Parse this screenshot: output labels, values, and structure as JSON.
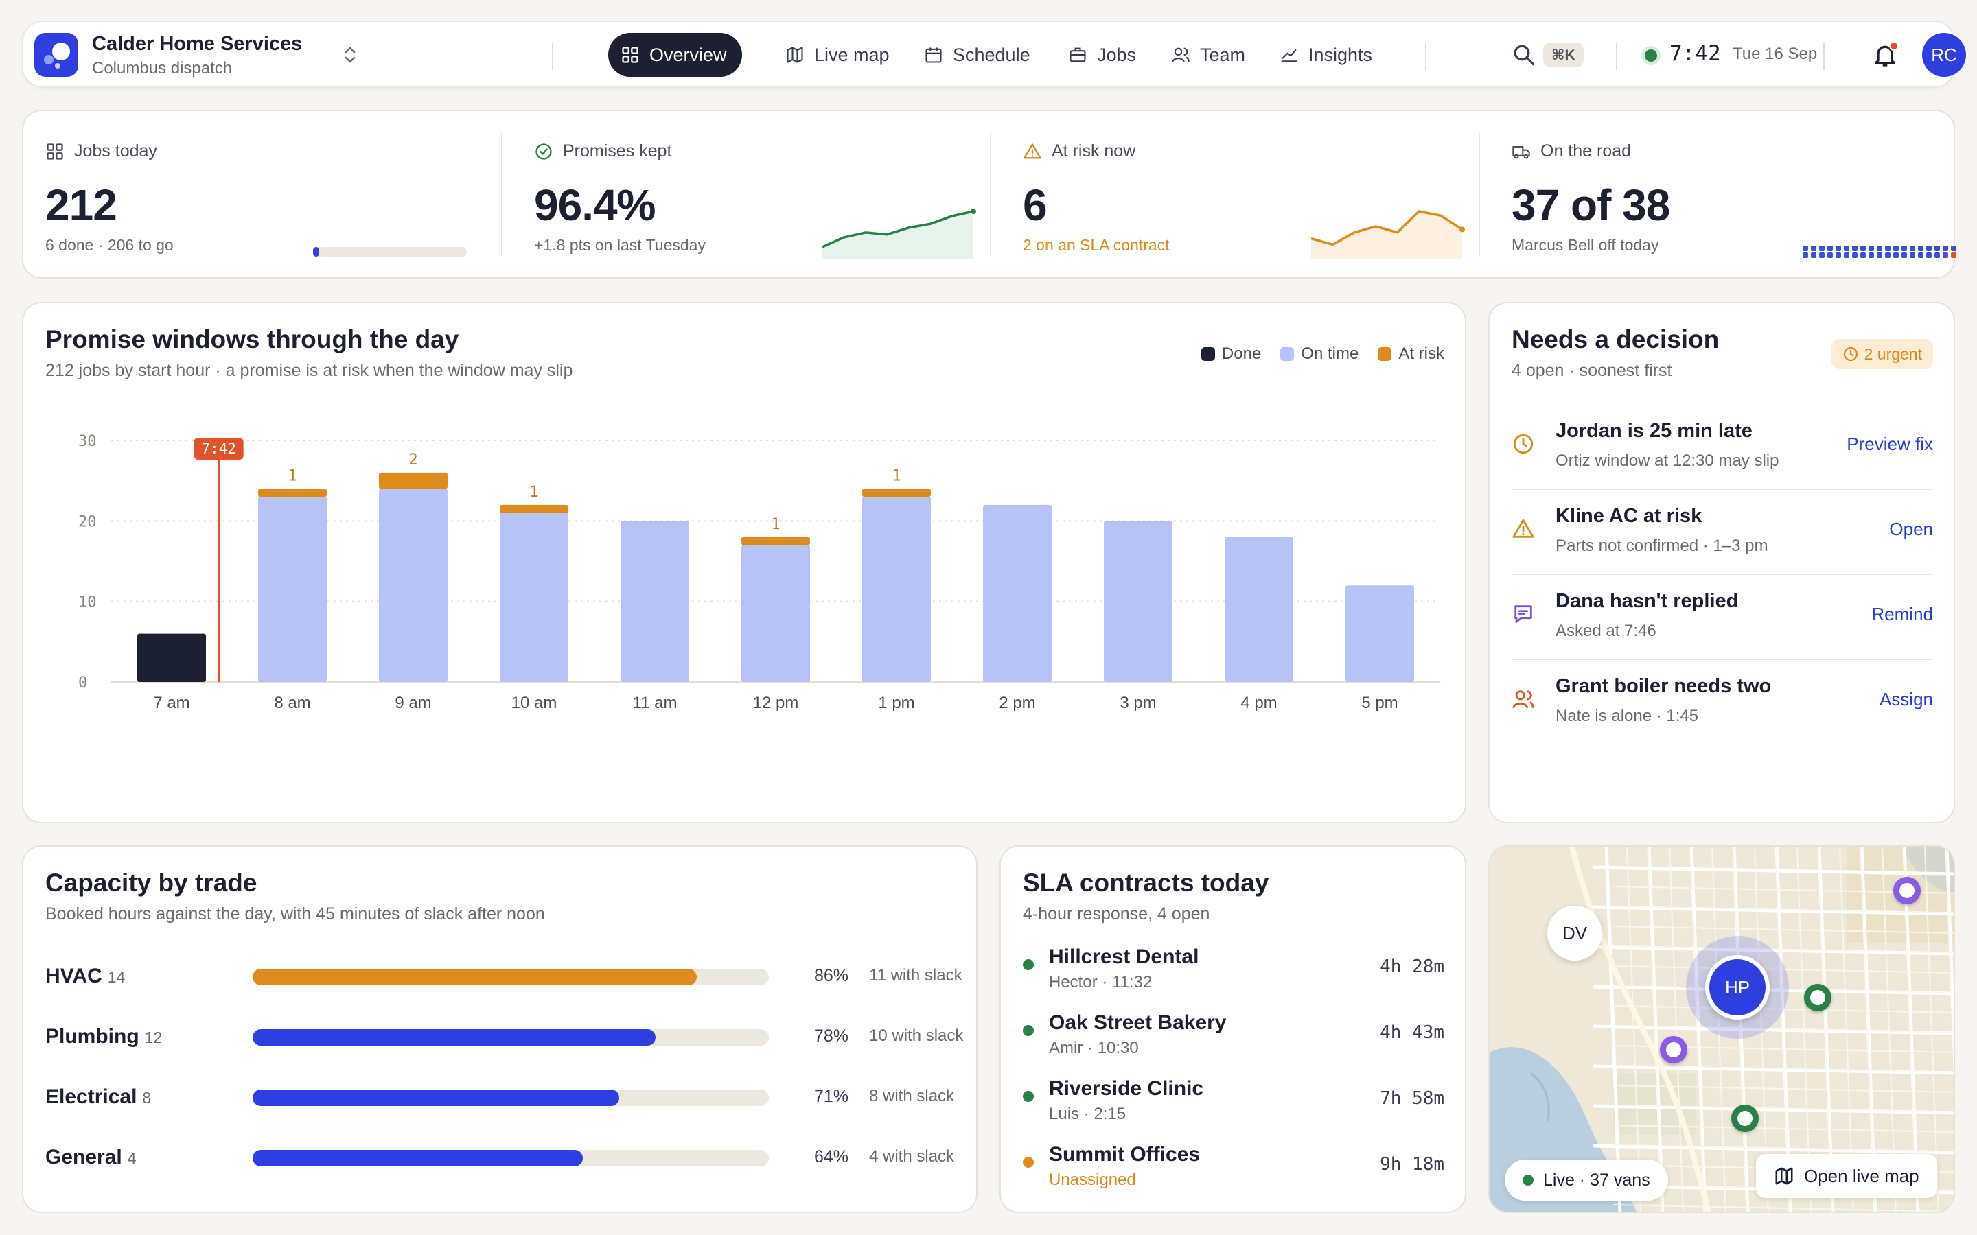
{
  "header": {
    "company": "Calder Home Services",
    "subtitle": "Columbus dispatch",
    "nav": [
      {
        "label": "Overview",
        "icon": "grid-icon",
        "active": true
      },
      {
        "label": "Live map",
        "icon": "map-icon"
      },
      {
        "label": "Schedule",
        "icon": "calendar-icon"
      },
      {
        "label": "Jobs",
        "icon": "briefcase-icon"
      },
      {
        "label": "Team",
        "icon": "people-icon"
      },
      {
        "label": "Insights",
        "icon": "chart-icon"
      }
    ],
    "shortcut": "⌘K",
    "time": "7:42",
    "date": "Tue 16 Sep",
    "avatar": "RC"
  },
  "kpis": [
    {
      "label": "Jobs today",
      "icon": "grid-icon",
      "value": "212",
      "sub": "6 done · 206 to go",
      "progress": 0.028
    },
    {
      "label": "Promises kept",
      "icon": "check-circle-icon",
      "value": "96.4%",
      "sub": "+1.8 pts on last Tuesday",
      "spark": [
        2,
        4,
        5,
        4.6,
        6,
        6.8,
        8.4,
        9.4
      ]
    },
    {
      "label": "At risk now",
      "icon": "warning-icon",
      "value": "6",
      "sub": "2 on an SLA contract",
      "spark": [
        3,
        2,
        4,
        5,
        4,
        7.5,
        6.8,
        4.5
      ]
    },
    {
      "label": "On the road",
      "icon": "truck-icon",
      "value": "37 of 38",
      "sub": "Marcus Bell off today",
      "on_road": 37,
      "total": 38
    }
  ],
  "promise": {
    "title": "Promise windows through the day",
    "subtitle": "212 jobs by start hour · a promise is at risk when the window may slip",
    "legend": [
      "Done",
      "On time",
      "At risk"
    ]
  },
  "chart_data": {
    "type": "bar",
    "stacked": true,
    "categories": [
      "7 am",
      "8 am",
      "9 am",
      "10 am",
      "11 am",
      "12 pm",
      "1 pm",
      "2 pm",
      "3 pm",
      "4 pm",
      "5 pm"
    ],
    "series": [
      {
        "name": "Done",
        "color": "#1c2030",
        "values": [
          6,
          0,
          0,
          0,
          0,
          0,
          0,
          0,
          0,
          0,
          0
        ]
      },
      {
        "name": "On time",
        "color": "#b7c2f7",
        "values": [
          0,
          23,
          24,
          21,
          20,
          17,
          23,
          22,
          20,
          18,
          12
        ]
      },
      {
        "name": "At risk",
        "color": "#de8b1e",
        "values": [
          0,
          1,
          2,
          1,
          0,
          1,
          1,
          0,
          0,
          0,
          0
        ]
      }
    ],
    "risk_labels": [
      "",
      "1",
      "2",
      "1",
      "",
      "1",
      "1",
      "",
      "",
      "",
      ""
    ],
    "yticks": [
      0,
      10,
      20,
      30
    ],
    "ylim": [
      0,
      30
    ],
    "now_marker": {
      "label": "7:42",
      "position": 0.2
    },
    "grid": true
  },
  "decisions": {
    "title": "Needs a decision",
    "subtitle": "4 open · soonest first",
    "badge": "2 urgent",
    "items": [
      {
        "title": "Jordan is 25 min late",
        "sub": "Ortiz window at 12:30 may slip",
        "action": "Preview fix",
        "icon": "clock-icon",
        "color": "#d98b18"
      },
      {
        "title": "Kline AC at risk",
        "sub": "Parts not confirmed · 1–3 pm",
        "action": "Open",
        "icon": "warning-icon",
        "color": "#d98b18"
      },
      {
        "title": "Dana hasn't replied",
        "sub": "Asked at 7:46",
        "action": "Remind",
        "icon": "message-icon",
        "color": "#7b52d8"
      },
      {
        "title": "Grant boiler needs two",
        "sub": "Nate is alone · 1:45",
        "action": "Assign",
        "icon": "people-icon",
        "color": "#e0522a"
      }
    ]
  },
  "capacity": {
    "title": "Capacity by trade",
    "subtitle": "Booked hours against the day, with 45 minutes of slack after noon",
    "rows": [
      {
        "trade": "HVAC",
        "count": "14",
        "pct": 86,
        "pct_label": "86%",
        "slack": "11 with slack",
        "color": "#de8b1e"
      },
      {
        "trade": "Plumbing",
        "count": "12",
        "pct": 78,
        "pct_label": "78%",
        "slack": "10 with slack",
        "color": "#2f3ee0"
      },
      {
        "trade": "Electrical",
        "count": "8",
        "pct": 71,
        "pct_label": "71%",
        "slack": "8 with slack",
        "color": "#2f3ee0"
      },
      {
        "trade": "General",
        "count": "4",
        "pct": 64,
        "pct_label": "64%",
        "slack": "4 with slack",
        "color": "#2f3ee0"
      }
    ]
  },
  "sla": {
    "title": "SLA contracts today",
    "subtitle": "4-hour response, 4 open",
    "items": [
      {
        "name": "Hillcrest Dental",
        "who": "Hector · 11:32",
        "remaining": "4h 28m",
        "dot": "#2a8048",
        "who_color": "#6e6b66"
      },
      {
        "name": "Oak Street Bakery",
        "who": "Amir · 10:30",
        "remaining": "4h 43m",
        "dot": "#2a8048",
        "who_color": "#6e6b66"
      },
      {
        "name": "Riverside Clinic",
        "who": "Luis · 2:15",
        "remaining": "7h 58m",
        "dot": "#2a8048",
        "who_color": "#6e6b66"
      },
      {
        "name": "Summit Offices",
        "who": "Unassigned",
        "remaining": "9h 18m",
        "dot": "#de8b1e",
        "who_color": "#d98b18"
      }
    ]
  },
  "map": {
    "dv": "DV",
    "hp": "HP",
    "live_label": "Live · 37 vans",
    "open_label": "Open live map"
  }
}
